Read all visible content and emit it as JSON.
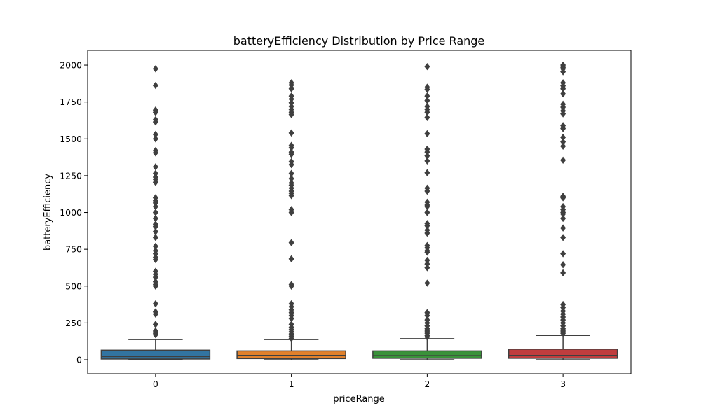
{
  "chart_data": {
    "type": "box",
    "title": "batteryEfficiency Distribution by Price Range",
    "xlabel": "priceRange",
    "ylabel": "batteryEfficiency",
    "ylim": [
      -95,
      2100
    ],
    "yticks": [
      0,
      250,
      500,
      750,
      1000,
      1250,
      1500,
      1750,
      2000
    ],
    "grid": false,
    "categories": [
      "0",
      "1",
      "2",
      "3"
    ],
    "boxes": [
      {
        "category": "0",
        "color": "#3274a1",
        "whisker_low": 0,
        "q1": 5,
        "median": 22,
        "q3": 65,
        "whisker_high": 137,
        "outliers": [
          1975,
          1862,
          1695,
          1680,
          1630,
          1615,
          1530,
          1500,
          1420,
          1405,
          1310,
          1265,
          1240,
          1225,
          1205,
          1100,
          1080,
          1065,
          1040,
          1000,
          960,
          920,
          905,
          870,
          830,
          770,
          740,
          720,
          695,
          680,
          600,
          580,
          560,
          530,
          510,
          500,
          380,
          325,
          310,
          240,
          195,
          180,
          170
        ]
      },
      {
        "category": "1",
        "color": "#e1812c",
        "whisker_low": 0,
        "q1": 8,
        "median": 30,
        "q3": 60,
        "whisker_high": 137,
        "outliers": [
          1880,
          1865,
          1840,
          1790,
          1770,
          1745,
          1720,
          1700,
          1680,
          1665,
          1540,
          1455,
          1440,
          1410,
          1395,
          1345,
          1325,
          1265,
          1230,
          1200,
          1185,
          1165,
          1145,
          1130,
          1115,
          1020,
          1000,
          795,
          685,
          510,
          500,
          380,
          360,
          340,
          320,
          300,
          280,
          240,
          220,
          205,
          190,
          175,
          160,
          145
        ]
      },
      {
        "category": "2",
        "color": "#3a923a",
        "whisker_low": 0,
        "q1": 10,
        "median": 28,
        "q3": 60,
        "whisker_high": 143,
        "outliers": [
          1990,
          1850,
          1835,
          1790,
          1760,
          1720,
          1700,
          1680,
          1645,
          1535,
          1430,
          1410,
          1385,
          1350,
          1270,
          1165,
          1145,
          1070,
          1050,
          1040,
          1000,
          925,
          910,
          880,
          860,
          775,
          760,
          740,
          730,
          675,
          650,
          625,
          520,
          320,
          300,
          270,
          250,
          230,
          210,
          195,
          180,
          165,
          155
        ]
      },
      {
        "category": "3",
        "color": "#c03d3e",
        "whisker_low": 0,
        "q1": 10,
        "median": 30,
        "q3": 72,
        "whisker_high": 165,
        "outliers": [
          2000,
          1985,
          1975,
          1955,
          1880,
          1860,
          1840,
          1805,
          1735,
          1715,
          1690,
          1670,
          1590,
          1570,
          1510,
          1480,
          1450,
          1355,
          1110,
          1100,
          1040,
          1020,
          1000,
          990,
          960,
          895,
          830,
          720,
          645,
          590,
          375,
          355,
          330,
          310,
          290,
          270,
          250,
          230,
          210,
          195,
          180
        ]
      }
    ]
  }
}
